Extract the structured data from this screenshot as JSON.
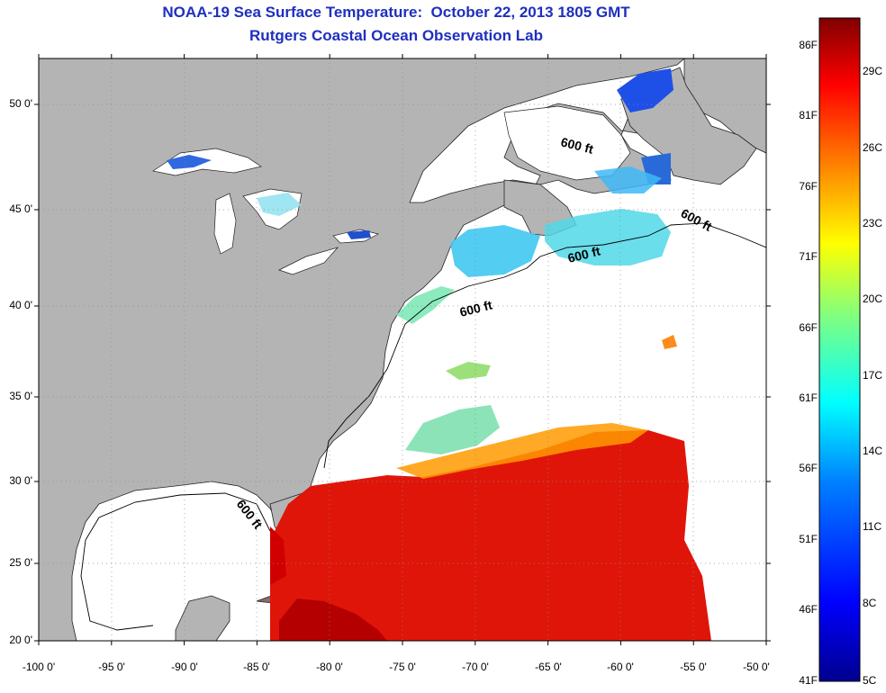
{
  "title_line1": "NOAA-19 Sea Surface Temperature:  October 22, 2013 1805 GMT",
  "title_line2": "Rutgers Coastal Ocean Observation Lab",
  "map": {
    "lon_range": [
      -100,
      -50
    ],
    "lat_range": [
      20,
      52.5
    ],
    "lon_ticks": [
      -100,
      -95,
      -90,
      -85,
      -80,
      -75,
      -70,
      -65,
      -60,
      -55,
      -50
    ],
    "lat_ticks": [
      20,
      25,
      30,
      35,
      40,
      45,
      50
    ],
    "lon_tick_labels": [
      "-100 0'",
      "-95 0'",
      "-90 0'",
      "-85 0'",
      "-80 0'",
      "-75 0'",
      "-70 0'",
      "-65 0'",
      "-60 0'",
      "-55 0'",
      "-50 0'"
    ],
    "lat_tick_labels": [
      "20 0'",
      "25 0'",
      "30 0'",
      "35 0'",
      "40 0'",
      "45 0'",
      "50 0'"
    ],
    "grid": "dotted",
    "land_color": "#b4b4b4",
    "no_data_color": "#ffffff",
    "contour_label": "600 ft"
  },
  "colorbar": {
    "fahrenheit_labels": [
      "86F",
      "81F",
      "76F",
      "71F",
      "66F",
      "61F",
      "56F",
      "51F",
      "46F",
      "41F"
    ],
    "celsius_labels": [
      "29C",
      "26C",
      "23C",
      "20C",
      "17C",
      "14C",
      "11C",
      "8C",
      "5C"
    ],
    "colors": [
      "#00008f",
      "#0000ff",
      "#0080ff",
      "#00ffff",
      "#80ff80",
      "#ffff00",
      "#ff8000",
      "#ff0000",
      "#800000"
    ]
  }
}
